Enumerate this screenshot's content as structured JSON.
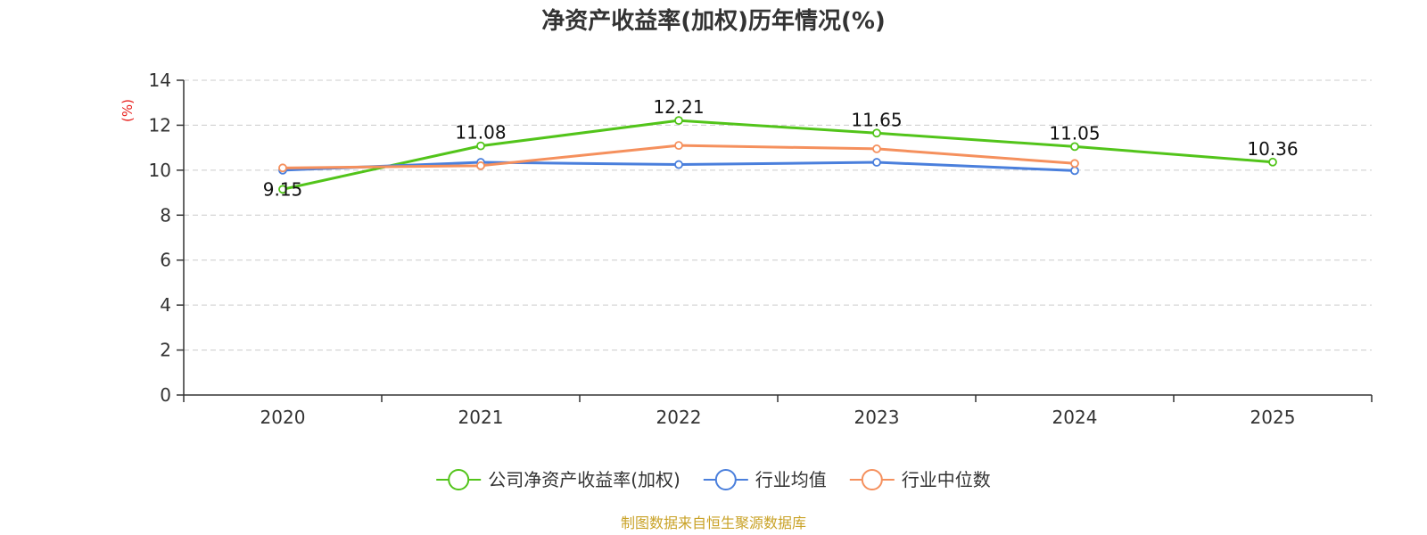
{
  "chart_data": {
    "type": "line",
    "title": "净资产收益率(加权)历年情况(%)",
    "ylabel": "(%)",
    "xlabel": "",
    "categories": [
      "2020",
      "2021",
      "2022",
      "2023",
      "2024",
      "2025"
    ],
    "ylim": [
      0,
      14
    ],
    "yticks": [
      0,
      2,
      4,
      6,
      8,
      10,
      12,
      14
    ],
    "grid": true,
    "legend_position": "bottom",
    "series": [
      {
        "name": "公司净资产收益率(加权)",
        "color": "#52c41a",
        "values": [
          9.15,
          11.08,
          12.21,
          11.65,
          11.05,
          10.36
        ],
        "labels": [
          "9.15",
          "11.08",
          "12.21",
          "11.65",
          "11.05",
          "10.36"
        ]
      },
      {
        "name": "行业均值",
        "color": "#4a7fdc",
        "values": [
          10.0,
          10.35,
          10.25,
          10.35,
          9.98,
          null
        ],
        "labels": null
      },
      {
        "name": "行业中位数",
        "color": "#f5905d",
        "values": [
          10.1,
          10.2,
          11.1,
          10.95,
          10.3,
          null
        ],
        "labels": null
      }
    ],
    "source": "制图数据来自恒生聚源数据库"
  }
}
